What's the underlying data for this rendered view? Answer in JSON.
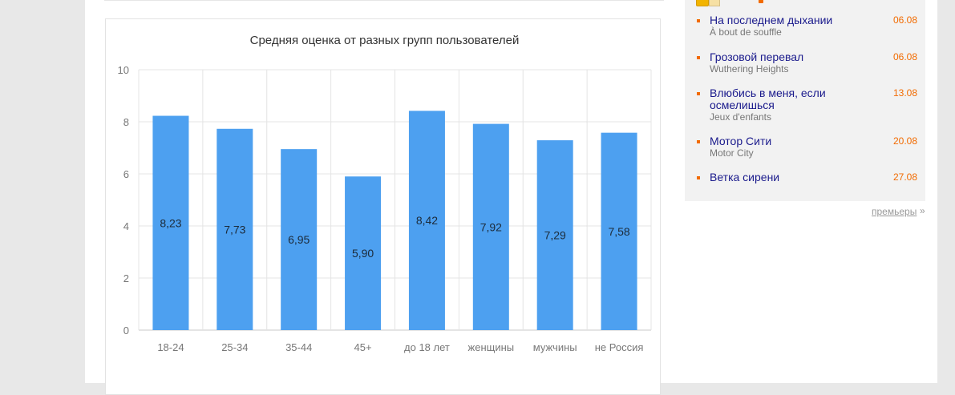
{
  "chart_data": {
    "type": "bar",
    "title": "Средняя оценка от разных групп пользователей",
    "categories": [
      "18-24",
      "25-34",
      "35-44",
      "45+",
      "до 18 лет",
      "женщины",
      "мужчины",
      "не Россия"
    ],
    "values": [
      8.23,
      7.73,
      6.95,
      5.9,
      8.42,
      7.92,
      7.29,
      7.58
    ],
    "value_labels": [
      "8,23",
      "7,73",
      "6,95",
      "5,90",
      "8,42",
      "7,92",
      "7,29",
      "7,58"
    ],
    "y_ticks": [
      0,
      2,
      4,
      6,
      8,
      10
    ],
    "ylim": [
      0,
      10
    ],
    "grid": true,
    "bar_color": "#4da0f0",
    "xlabel": "",
    "ylabel": ""
  },
  "premieres": {
    "items": [
      {
        "title": "На последнем дыхании",
        "subtitle": "À bout de souffle",
        "date": "06.08"
      },
      {
        "title": "Грозовой перевал",
        "subtitle": "Wuthering Heights",
        "date": "06.08"
      },
      {
        "title": "Влюбись в меня, если осмелишься",
        "subtitle": "Jeux d'enfants",
        "date": "13.08"
      },
      {
        "title": "Мотор Сити",
        "subtitle": "Motor City",
        "date": "20.08"
      },
      {
        "title": "Ветка сирени",
        "subtitle": "",
        "date": "27.08"
      }
    ],
    "more_label": "премьеры",
    "more_arrow": "»",
    "accent_color": "#f26b00",
    "link_color": "#1a1a8c"
  }
}
